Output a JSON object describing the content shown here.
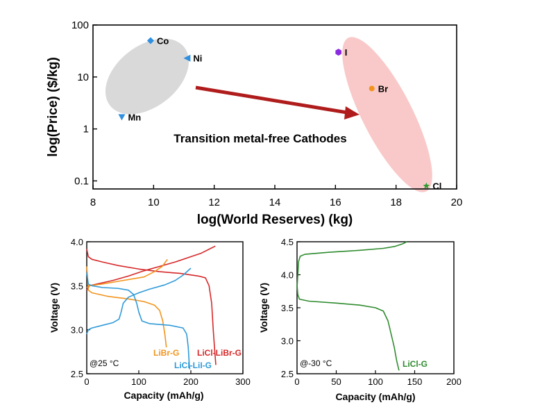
{
  "chart_data": [
    {
      "type": "scatter",
      "xlabel": "log(World Reserves) (kg)",
      "ylabel": "log(Price) ($/kg)",
      "xlim": [
        8,
        20
      ],
      "ylim": [
        0.07,
        100
      ],
      "yscale": "log",
      "xticks": [
        "8",
        "10",
        "12",
        "14",
        "16",
        "18",
        "20"
      ],
      "yticks": [
        "0.1",
        "1",
        "10",
        "100"
      ],
      "points": [
        {
          "label": "Co",
          "x": 9.9,
          "y": 50,
          "marker": "diamond",
          "color": "#2f8fe0"
        },
        {
          "label": "Ni",
          "x": 11.1,
          "y": 23,
          "marker": "triangle-left",
          "color": "#2f8fe0"
        },
        {
          "label": "Mn",
          "x": 8.95,
          "y": 1.7,
          "marker": "triangle-down",
          "color": "#2f8fe0"
        },
        {
          "label": "I",
          "x": 16.1,
          "y": 30,
          "marker": "hexagon",
          "color": "#8a2be2"
        },
        {
          "label": "Br",
          "x": 17.2,
          "y": 6,
          "marker": "circle",
          "color": "#f2931c"
        },
        {
          "label": "Cl",
          "x": 19.0,
          "y": 0.08,
          "marker": "star",
          "color": "#2e9e2e"
        }
      ],
      "annotation": "Transition metal-free Cathodes",
      "colors": {
        "metals_region": "#d9d9d9",
        "halogens_region": "#f9c9c9",
        "arrow": "#b01c1c"
      }
    },
    {
      "type": "line",
      "xlabel": "Capacity (mAh/g)",
      "ylabel": "Voltage (V)",
      "xlim": [
        0,
        300
      ],
      "ylim": [
        2.5,
        4.0
      ],
      "xticks": [
        "0",
        "100",
        "200",
        "300"
      ],
      "yticks": [
        "2.5",
        "3.0",
        "3.5",
        "4.0"
      ],
      "condition": "@25 °C",
      "series": [
        {
          "name": "LiCl-LiBr-G",
          "color": "#d62728",
          "charge": [
            [
              0,
              3.45
            ],
            [
              5,
              3.5
            ],
            [
              20,
              3.52
            ],
            [
              50,
              3.56
            ],
            [
              80,
              3.61
            ],
            [
              110,
              3.67
            ],
            [
              140,
              3.72
            ],
            [
              170,
              3.77
            ],
            [
              200,
              3.83
            ],
            [
              220,
              3.87
            ],
            [
              240,
              3.93
            ],
            [
              247,
              3.95
            ]
          ],
          "discharge": [
            [
              0,
              3.92
            ],
            [
              3,
              3.83
            ],
            [
              10,
              3.8
            ],
            [
              30,
              3.77
            ],
            [
              60,
              3.73
            ],
            [
              100,
              3.69
            ],
            [
              140,
              3.66
            ],
            [
              180,
              3.64
            ],
            [
              215,
              3.61
            ],
            [
              228,
              3.59
            ],
            [
              235,
              3.5
            ],
            [
              240,
              3.3
            ],
            [
              243,
              3.0
            ],
            [
              246,
              2.75
            ],
            [
              248,
              2.6
            ]
          ]
        },
        {
          "name": "LiBr-G",
          "color": "#f2931c",
          "charge": [
            [
              0,
              3.48
            ],
            [
              5,
              3.5
            ],
            [
              30,
              3.52
            ],
            [
              60,
              3.55
            ],
            [
              90,
              3.58
            ],
            [
              110,
              3.6
            ],
            [
              130,
              3.66
            ],
            [
              145,
              3.72
            ],
            [
              155,
              3.8
            ]
          ],
          "discharge": [
            [
              0,
              3.72
            ],
            [
              3,
              3.45
            ],
            [
              10,
              3.42
            ],
            [
              40,
              3.38
            ],
            [
              80,
              3.35
            ],
            [
              110,
              3.32
            ],
            [
              130,
              3.28
            ],
            [
              140,
              3.22
            ],
            [
              146,
              3.1
            ],
            [
              150,
              2.95
            ],
            [
              153,
              2.8
            ]
          ]
        },
        {
          "name": "LiCl-LiI-G",
          "color": "#2f9ad8",
          "charge": [
            [
              0,
              2.95
            ],
            [
              3,
              3.0
            ],
            [
              10,
              3.02
            ],
            [
              30,
              3.05
            ],
            [
              50,
              3.08
            ],
            [
              62,
              3.12
            ],
            [
              66,
              3.2
            ],
            [
              70,
              3.3
            ],
            [
              80,
              3.37
            ],
            [
              100,
              3.42
            ],
            [
              120,
              3.46
            ],
            [
              150,
              3.51
            ],
            [
              170,
              3.56
            ],
            [
              185,
              3.62
            ],
            [
              200,
              3.7
            ]
          ],
          "discharge": [
            [
              0,
              3.65
            ],
            [
              3,
              3.52
            ],
            [
              10,
              3.5
            ],
            [
              30,
              3.48
            ],
            [
              60,
              3.47
            ],
            [
              80,
              3.45
            ],
            [
              90,
              3.4
            ],
            [
              96,
              3.3
            ],
            [
              100,
              3.2
            ],
            [
              106,
              3.1
            ],
            [
              120,
              3.07
            ],
            [
              160,
              3.05
            ],
            [
              185,
              3.02
            ],
            [
              192,
              2.95
            ],
            [
              195,
              2.8
            ],
            [
              197,
              2.6
            ],
            [
              198,
              2.55
            ]
          ]
        }
      ]
    },
    {
      "type": "line",
      "xlabel": "Capacity (mAh/g)",
      "ylabel": "Voltage (V)",
      "xlim": [
        0,
        200
      ],
      "ylim": [
        2.5,
        4.5
      ],
      "xticks": [
        "0",
        "50",
        "100",
        "150",
        "200"
      ],
      "yticks": [
        "2.5",
        "3.0",
        "3.5",
        "4.0",
        "4.5"
      ],
      "condition": "@-30 °C",
      "series": [
        {
          "name": "LiCl-G",
          "color": "#2e8b2e",
          "charge": [
            [
              0,
              3.8
            ],
            [
              1,
              4.0
            ],
            [
              2,
              4.2
            ],
            [
              4,
              4.28
            ],
            [
              10,
              4.31
            ],
            [
              40,
              4.34
            ],
            [
              80,
              4.37
            ],
            [
              110,
              4.4
            ],
            [
              125,
              4.43
            ],
            [
              135,
              4.47
            ],
            [
              140,
              4.5
            ]
          ],
          "discharge": [
            [
              0,
              3.85
            ],
            [
              1,
              3.7
            ],
            [
              3,
              3.63
            ],
            [
              15,
              3.6
            ],
            [
              50,
              3.57
            ],
            [
              80,
              3.54
            ],
            [
              100,
              3.5
            ],
            [
              110,
              3.45
            ],
            [
              116,
              3.3
            ],
            [
              120,
              3.1
            ],
            [
              124,
              2.9
            ],
            [
              127,
              2.7
            ],
            [
              130,
              2.55
            ]
          ]
        }
      ]
    }
  ]
}
